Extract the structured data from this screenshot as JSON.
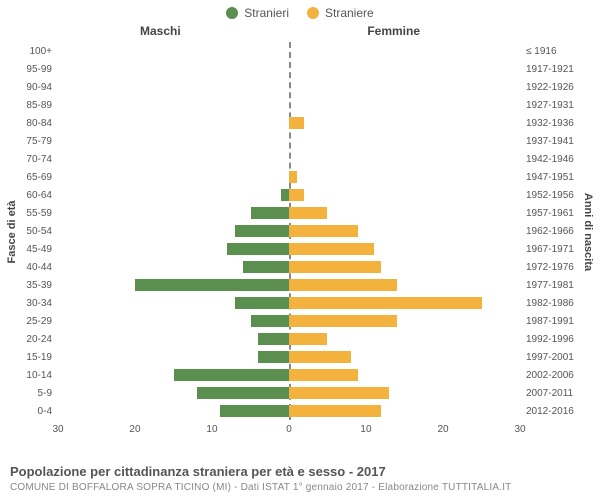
{
  "legend": {
    "male": {
      "label": "Stranieri",
      "color": "#5a8f4f"
    },
    "female": {
      "label": "Straniere",
      "color": "#f3b23d"
    }
  },
  "columns": {
    "left": "Maschi",
    "right": "Femmine"
  },
  "axis": {
    "left_title": "Fasce di età",
    "right_title": "Anni di nascita",
    "xmax": 30,
    "xticks_left": [
      30,
      20,
      10,
      0
    ],
    "xticks_right": [
      0,
      10,
      20,
      30
    ],
    "center_line_color": "#888888"
  },
  "colors": {
    "male_bar": "#5a8f4f",
    "female_bar": "#f3b23d",
    "background": "#ffffff",
    "text": "#555555",
    "text_subtle": "#888888"
  },
  "rows": [
    {
      "age": "100+",
      "birth": "≤ 1916",
      "m": 0,
      "f": 0
    },
    {
      "age": "95-99",
      "birth": "1917-1921",
      "m": 0,
      "f": 0
    },
    {
      "age": "90-94",
      "birth": "1922-1926",
      "m": 0,
      "f": 0
    },
    {
      "age": "85-89",
      "birth": "1927-1931",
      "m": 0,
      "f": 0
    },
    {
      "age": "80-84",
      "birth": "1932-1936",
      "m": 0,
      "f": 2
    },
    {
      "age": "75-79",
      "birth": "1937-1941",
      "m": 0,
      "f": 0
    },
    {
      "age": "70-74",
      "birth": "1942-1946",
      "m": 0,
      "f": 0
    },
    {
      "age": "65-69",
      "birth": "1947-1951",
      "m": 0,
      "f": 1
    },
    {
      "age": "60-64",
      "birth": "1952-1956",
      "m": 1,
      "f": 2
    },
    {
      "age": "55-59",
      "birth": "1957-1961",
      "m": 5,
      "f": 5
    },
    {
      "age": "50-54",
      "birth": "1962-1966",
      "m": 7,
      "f": 9
    },
    {
      "age": "45-49",
      "birth": "1967-1971",
      "m": 8,
      "f": 11
    },
    {
      "age": "40-44",
      "birth": "1972-1976",
      "m": 6,
      "f": 12
    },
    {
      "age": "35-39",
      "birth": "1977-1981",
      "m": 20,
      "f": 14
    },
    {
      "age": "30-34",
      "birth": "1982-1986",
      "m": 7,
      "f": 25
    },
    {
      "age": "25-29",
      "birth": "1987-1991",
      "m": 5,
      "f": 14
    },
    {
      "age": "20-24",
      "birth": "1992-1996",
      "m": 4,
      "f": 5
    },
    {
      "age": "15-19",
      "birth": "1997-2001",
      "m": 4,
      "f": 8
    },
    {
      "age": "10-14",
      "birth": "2002-2006",
      "m": 15,
      "f": 9
    },
    {
      "age": "5-9",
      "birth": "2007-2011",
      "m": 12,
      "f": 13
    },
    {
      "age": "0-4",
      "birth": "2012-2016",
      "m": 9,
      "f": 12
    }
  ],
  "footer": {
    "title": "Popolazione per cittadinanza straniera per età e sesso - 2017",
    "subtitle": "COMUNE DI BOFFALORA SOPRA TICINO (MI) - Dati ISTAT 1° gennaio 2017 - Elaborazione TUTTITALIA.IT"
  },
  "chart_type": "population-pyramid"
}
